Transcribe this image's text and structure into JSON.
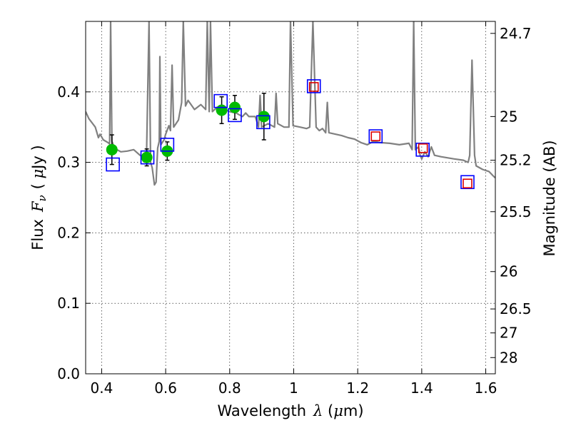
{
  "chart_data": {
    "type": "scatter",
    "xlabel": "Wavelength",
    "xlabel_symbol": "λ",
    "xlabel_unit_open": " (",
    "xlabel_unit_mu": "μ",
    "xlabel_unit_close": "m)",
    "ylabel": "Flux",
    "ylabel_symbol": "F",
    "ylabel_symbol_sub": "ν",
    "ylabel_unit_open": "( ",
    "ylabel_unit_mu": "μ",
    "ylabel_unit_close": "Jy )",
    "y2label": "Magnitude (AB)",
    "xlim": [
      0.35,
      1.63
    ],
    "ylim": [
      0.0,
      0.5
    ],
    "grid": true,
    "x_ticks": [
      {
        "value": 0.4,
        "label": "0.4"
      },
      {
        "value": 0.6,
        "label": "0.6"
      },
      {
        "value": 0.8,
        "label": "0.8"
      },
      {
        "value": 1.0,
        "label": "1"
      },
      {
        "value": 1.2,
        "label": "1.2"
      },
      {
        "value": 1.4,
        "label": "1.4"
      },
      {
        "value": 1.6,
        "label": "1.6"
      }
    ],
    "y_ticks": [
      {
        "value": 0.0,
        "label": "0.0"
      },
      {
        "value": 0.1,
        "label": "0.1"
      },
      {
        "value": 0.2,
        "label": "0.2"
      },
      {
        "value": 0.3,
        "label": "0.3"
      },
      {
        "value": 0.4,
        "label": "0.4"
      }
    ],
    "mag_ticks": [
      {
        "label": "24.7",
        "flux": 0.483
      },
      {
        "label": "25",
        "flux": 0.365
      },
      {
        "label": "25.2",
        "flux": 0.303
      },
      {
        "label": "25.5",
        "flux": 0.23
      },
      {
        "label": "26",
        "flux": 0.145
      },
      {
        "label": "26.5",
        "flux": 0.092
      },
      {
        "label": "27",
        "flux": 0.058
      },
      {
        "label": "28",
        "flux": 0.023
      }
    ],
    "template_spectrum": {
      "name": "template",
      "color": "#808080",
      "points": [
        [
          0.35,
          0.372
        ],
        [
          0.36,
          0.362
        ],
        [
          0.38,
          0.35
        ],
        [
          0.39,
          0.335
        ],
        [
          0.395,
          0.34
        ],
        [
          0.405,
          0.332
        ],
        [
          0.42,
          0.328
        ],
        [
          0.425,
          0.326
        ],
        [
          0.428,
          0.5
        ],
        [
          0.432,
          0.33
        ],
        [
          0.44,
          0.32
        ],
        [
          0.46,
          0.315
        ],
        [
          0.48,
          0.316
        ],
        [
          0.5,
          0.318
        ],
        [
          0.52,
          0.31
        ],
        [
          0.54,
          0.305
        ],
        [
          0.548,
          0.5
        ],
        [
          0.553,
          0.3
        ],
        [
          0.558,
          0.292
        ],
        [
          0.565,
          0.268
        ],
        [
          0.57,
          0.272
        ],
        [
          0.575,
          0.32
        ],
        [
          0.58,
          0.33
        ],
        [
          0.582,
          0.45
        ],
        [
          0.585,
          0.325
        ],
        [
          0.595,
          0.332
        ],
        [
          0.6,
          0.34
        ],
        [
          0.61,
          0.352
        ],
        [
          0.615,
          0.345
        ],
        [
          0.62,
          0.438
        ],
        [
          0.625,
          0.35
        ],
        [
          0.64,
          0.36
        ],
        [
          0.65,
          0.385
        ],
        [
          0.655,
          0.5
        ],
        [
          0.662,
          0.38
        ],
        [
          0.67,
          0.388
        ],
        [
          0.69,
          0.375
        ],
        [
          0.71,
          0.382
        ],
        [
          0.725,
          0.375
        ],
        [
          0.73,
          0.5
        ],
        [
          0.736,
          0.372
        ],
        [
          0.74,
          0.5
        ],
        [
          0.746,
          0.372
        ],
        [
          0.76,
          0.378
        ],
        [
          0.77,
          0.375
        ],
        [
          0.785,
          0.375
        ],
        [
          0.8,
          0.372
        ],
        [
          0.82,
          0.37
        ],
        [
          0.84,
          0.365
        ],
        [
          0.85,
          0.37
        ],
        [
          0.86,
          0.365
        ],
        [
          0.88,
          0.365
        ],
        [
          0.89,
          0.35
        ],
        [
          0.895,
          0.395
        ],
        [
          0.9,
          0.35
        ],
        [
          0.92,
          0.355
        ],
        [
          0.94,
          0.35
        ],
        [
          0.945,
          0.398
        ],
        [
          0.95,
          0.355
        ],
        [
          0.97,
          0.35
        ],
        [
          0.985,
          0.35
        ],
        [
          0.99,
          0.5
        ],
        [
          0.998,
          0.352
        ],
        [
          1.02,
          0.35
        ],
        [
          1.04,
          0.348
        ],
        [
          1.05,
          0.35
        ],
        [
          1.06,
          0.5
        ],
        [
          1.07,
          0.35
        ],
        [
          1.08,
          0.345
        ],
        [
          1.09,
          0.348
        ],
        [
          1.1,
          0.342
        ],
        [
          1.105,
          0.385
        ],
        [
          1.11,
          0.342
        ],
        [
          1.13,
          0.34
        ],
        [
          1.15,
          0.338
        ],
        [
          1.17,
          0.335
        ],
        [
          1.19,
          0.333
        ],
        [
          1.21,
          0.328
        ],
        [
          1.23,
          0.325
        ],
        [
          1.25,
          0.33
        ],
        [
          1.27,
          0.328
        ],
        [
          1.3,
          0.327
        ],
        [
          1.33,
          0.325
        ],
        [
          1.36,
          0.327
        ],
        [
          1.37,
          0.318
        ],
        [
          1.375,
          0.5
        ],
        [
          1.38,
          0.318
        ],
        [
          1.39,
          0.322
        ],
        [
          1.395,
          0.31
        ],
        [
          1.4,
          0.305
        ],
        [
          1.41,
          0.315
        ],
        [
          1.42,
          0.308
        ],
        [
          1.43,
          0.322
        ],
        [
          1.44,
          0.31
        ],
        [
          1.46,
          0.308
        ],
        [
          1.5,
          0.305
        ],
        [
          1.53,
          0.303
        ],
        [
          1.545,
          0.3
        ],
        [
          1.55,
          0.31
        ],
        [
          1.557,
          0.445
        ],
        [
          1.565,
          0.31
        ],
        [
          1.57,
          0.295
        ],
        [
          1.59,
          0.29
        ],
        [
          1.61,
          0.287
        ],
        [
          1.625,
          0.28
        ],
        [
          1.63,
          0.278
        ]
      ]
    },
    "series": [
      {
        "name": "observed",
        "marker": "circle",
        "color": "#00bb00",
        "points": [
          {
            "x": 0.432,
            "y": 0.318,
            "err": 0.021
          },
          {
            "x": 0.541,
            "y": 0.307,
            "err": 0.012
          },
          {
            "x": 0.605,
            "y": 0.316,
            "err": 0.013
          },
          {
            "x": 0.775,
            "y": 0.374,
            "err": 0.019
          },
          {
            "x": 0.816,
            "y": 0.378,
            "err": 0.017
          },
          {
            "x": 0.907,
            "y": 0.365,
            "err": 0.033
          }
        ]
      },
      {
        "name": "model-blue",
        "marker": "square",
        "color": "#0000ff",
        "points": [
          {
            "x": 0.435,
            "y": 0.297
          },
          {
            "x": 0.543,
            "y": 0.307
          },
          {
            "x": 0.605,
            "y": 0.325
          },
          {
            "x": 0.772,
            "y": 0.387
          },
          {
            "x": 0.816,
            "y": 0.367
          },
          {
            "x": 0.905,
            "y": 0.357
          },
          {
            "x": 1.063,
            "y": 0.408
          },
          {
            "x": 1.256,
            "y": 0.337
          },
          {
            "x": 1.403,
            "y": 0.318
          },
          {
            "x": 1.543,
            "y": 0.272
          }
        ]
      },
      {
        "name": "model-red",
        "marker": "square",
        "color": "#dd0000",
        "points": [
          {
            "x": 1.063,
            "y": 0.407
          },
          {
            "x": 1.256,
            "y": 0.337
          },
          {
            "x": 1.404,
            "y": 0.32
          },
          {
            "x": 1.543,
            "y": 0.27
          }
        ]
      }
    ]
  }
}
